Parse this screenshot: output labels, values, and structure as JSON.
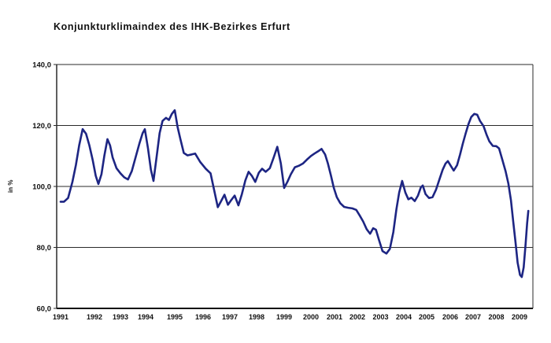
{
  "title": "Konjunkturklimaindex des IHK-Bezirkes Erfurt",
  "chart_data": {
    "type": "line",
    "title": "Konjunkturklimaindex des IHK-Bezirkes Erfurt",
    "xlabel": "",
    "ylabel": "in %",
    "ylim": [
      60,
      140
    ],
    "yticks": [
      140,
      120,
      100,
      80,
      60
    ],
    "ytick_labels": [
      "140,0",
      "120,0",
      "100,0",
      "80,0",
      "60,0"
    ],
    "xtick_labels": [
      "1991",
      "1992",
      "1993",
      "1994",
      "1995",
      "1996",
      "1997",
      "1998",
      "1999",
      "2000",
      "2001",
      "2002",
      "2003",
      "2004",
      "2005",
      "2006",
      "2007",
      "2008",
      "2009"
    ],
    "grid": true,
    "legend": "none",
    "line_color": "#1d2583",
    "axis_color": "#2a2a2a",
    "series": [
      {
        "name": "Konjunkturklimaindex",
        "x": [
          1991.0,
          1991.1,
          1991.22,
          1991.35,
          1991.45,
          1991.55,
          1991.65,
          1991.75,
          1991.85,
          1991.95,
          1992.05,
          1992.15,
          1992.27,
          1992.38,
          1992.5,
          1992.6,
          1992.7,
          1992.85,
          1993.0,
          1993.15,
          1993.3,
          1993.45,
          1993.6,
          1993.75,
          1993.88,
          1993.97,
          1994.08,
          1994.18,
          1994.27,
          1994.38,
          1994.48,
          1994.58,
          1994.7,
          1994.8,
          1994.9,
          1995.0,
          1995.1,
          1995.2,
          1995.32,
          1995.45,
          1995.6,
          1995.72,
          1995.9,
          1996.1,
          1996.28,
          1996.42,
          1996.55,
          1996.68,
          1996.8,
          1996.93,
          1997.05,
          1997.18,
          1997.32,
          1997.45,
          1997.58,
          1997.7,
          1997.82,
          1997.95,
          1998.08,
          1998.2,
          1998.33,
          1998.48,
          1998.62,
          1998.75,
          1998.88,
          1999.0,
          1999.12,
          1999.25,
          1999.4,
          1999.55,
          1999.7,
          1999.85,
          2000.0,
          2000.15,
          2000.3,
          2000.45,
          2000.6,
          2000.72,
          2000.85,
          2000.97,
          2001.1,
          2001.25,
          2001.42,
          2001.6,
          2001.78,
          2001.95,
          2002.1,
          2002.25,
          2002.4,
          2002.55,
          2002.68,
          2002.8,
          2002.93,
          2003.08,
          2003.25,
          2003.4,
          2003.55,
          2003.68,
          2003.8,
          2003.93,
          2004.07,
          2004.2,
          2004.33,
          2004.48,
          2004.62,
          2004.75,
          2004.83,
          2004.95,
          2005.1,
          2005.25,
          2005.4,
          2005.55,
          2005.68,
          2005.8,
          2005.9,
          2006.02,
          2006.15,
          2006.3,
          2006.43,
          2006.55,
          2006.68,
          2006.8,
          2006.92,
          2007.05,
          2007.18,
          2007.3,
          2007.45,
          2007.58,
          2007.7,
          2007.85,
          2008.0,
          2008.12,
          2008.25,
          2008.4,
          2008.52,
          2008.63,
          2008.73,
          2008.83,
          2008.92,
          2009.02,
          2009.1,
          2009.18,
          2009.26,
          2009.33,
          2009.38
        ],
        "values": [
          95.0,
          95.0,
          96.2,
          101.5,
          107.0,
          113.5,
          118.8,
          117.3,
          113.5,
          108.5,
          103.5,
          100.8,
          104.0,
          110.0,
          115.5,
          113.5,
          109.5,
          106.0,
          104.3,
          103.0,
          102.3,
          105.0,
          109.5,
          114.0,
          117.5,
          118.8,
          112.5,
          105.5,
          101.8,
          110.0,
          117.5,
          121.5,
          122.5,
          121.8,
          123.8,
          125.0,
          119.5,
          115.5,
          111.0,
          110.2,
          110.5,
          110.8,
          108.0,
          105.8,
          104.3,
          98.5,
          93.2,
          95.3,
          97.3,
          94.0,
          95.5,
          97.0,
          93.8,
          97.5,
          102.0,
          104.8,
          103.5,
          101.5,
          104.5,
          105.8,
          104.8,
          106.0,
          109.5,
          113.0,
          107.5,
          99.5,
          101.5,
          104.0,
          106.3,
          106.8,
          107.5,
          108.8,
          110.0,
          110.8,
          111.5,
          112.3,
          110.5,
          107.5,
          103.5,
          99.5,
          96.5,
          94.5,
          93.3,
          93.0,
          92.8,
          92.3,
          90.5,
          88.5,
          86.0,
          84.5,
          86.3,
          85.8,
          82.5,
          78.8,
          78.0,
          79.5,
          85.0,
          92.5,
          98.0,
          101.8,
          98.0,
          95.8,
          96.3,
          95.2,
          97.0,
          99.8,
          100.3,
          97.5,
          96.2,
          96.5,
          99.0,
          102.5,
          105.5,
          107.5,
          108.3,
          106.8,
          105.2,
          107.0,
          110.5,
          114.0,
          117.5,
          120.5,
          122.8,
          123.8,
          123.5,
          121.5,
          119.8,
          117.0,
          114.8,
          113.3,
          113.2,
          112.5,
          109.0,
          105.0,
          101.0,
          95.5,
          88.5,
          81.5,
          75.0,
          71.0,
          70.3,
          73.5,
          81.0,
          88.0,
          92.0
        ]
      }
    ]
  }
}
